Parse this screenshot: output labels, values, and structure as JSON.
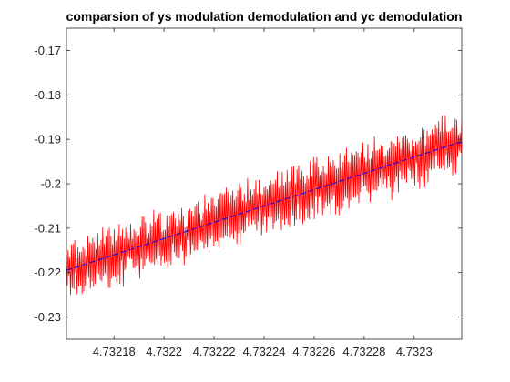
{
  "chart_data": {
    "type": "line",
    "title": "comparsion of ys modulation demodulation and yc demodulation",
    "xlabel": "",
    "ylabel": "",
    "xlim": [
      4.732161,
      4.732319
    ],
    "ylim": [
      -0.235,
      -0.165
    ],
    "x_ticks": [
      4.73218,
      4.7322,
      4.73222,
      4.73224,
      4.73226,
      4.73228,
      4.7323
    ],
    "x_tick_labels": [
      "4.73218",
      "4.7322",
      "4.73222",
      "4.73224",
      "4.73226",
      "4.73228",
      "4.7323"
    ],
    "y_ticks": [
      -0.17,
      -0.18,
      -0.19,
      -0.2,
      -0.21,
      -0.22,
      -0.23
    ],
    "y_tick_labels": [
      "-0.17",
      "-0.18",
      "-0.19",
      "-0.2",
      "-0.21",
      "-0.22",
      "-0.23"
    ],
    "grid": false,
    "box": true,
    "series": [
      {
        "style": "solid",
        "color": "#ff0000",
        "trend": {
          "x": [
            4.732161,
            4.732319
          ],
          "y": [
            -0.2195,
            -0.1905
          ]
        },
        "noise_amplitude": 0.0065,
        "sample_count": 480
      },
      {
        "style": "dashed",
        "color": "#0000ff",
        "x": [
          4.732161,
          4.732319
        ],
        "y": [
          -0.2195,
          -0.1905
        ]
      }
    ]
  }
}
